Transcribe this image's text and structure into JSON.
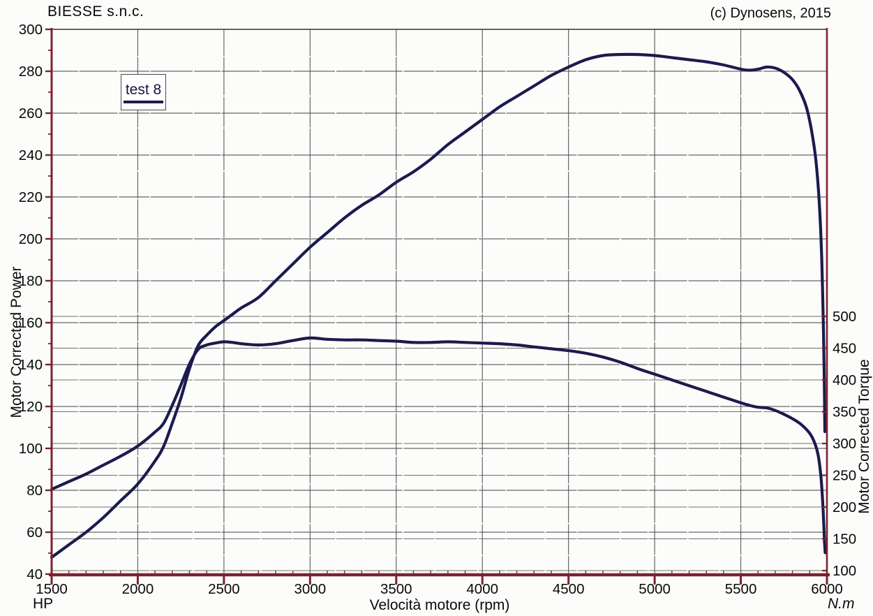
{
  "header": {
    "company_name": "BIESSE s.n.c.",
    "copyright": "(c) Dynosens, 2015"
  },
  "legend": {
    "series_label": "test 8"
  },
  "axes": {
    "x_label": "Velocità motore (rpm)",
    "y_left_label": "Motor Corrected Power",
    "y_right_label": "Motor Corrected Torque",
    "y_left_unit": "HP",
    "y_right_unit": "N.m"
  },
  "chart_data": {
    "type": "line",
    "title": "BIESSE s.n.c.",
    "xlabel": "Velocità motore (rpm)",
    "ylabel_left": "Motor Corrected Power (HP)",
    "ylabel_right": "Motor Corrected Torque (N.m)",
    "legend_entries": [
      "test 8"
    ],
    "legend_position": "top-left",
    "grid": true,
    "x_range": [
      1500,
      6000
    ],
    "x_ticks": [
      1500,
      2000,
      2500,
      3000,
      3500,
      4000,
      4500,
      5000,
      5500,
      6000
    ],
    "x_minor_step": 100,
    "y_left_range": [
      40,
      300
    ],
    "y_left_ticks": [
      300,
      280,
      260,
      240,
      220,
      200,
      180,
      160,
      140,
      120,
      100,
      80,
      60,
      40
    ],
    "y_left_minor_step": 10,
    "y_right_ticks": [
      500,
      450,
      400,
      350,
      300,
      250,
      200,
      150,
      100
    ],
    "series": [
      {
        "name": "test 8 power",
        "axis": "left",
        "unit": "HP",
        "points": [
          [
            1500,
            48
          ],
          [
            1600,
            54
          ],
          [
            1700,
            60
          ],
          [
            1800,
            67
          ],
          [
            1900,
            75
          ],
          [
            2000,
            83
          ],
          [
            2100,
            94
          ],
          [
            2150,
            101
          ],
          [
            2200,
            112
          ],
          [
            2250,
            124
          ],
          [
            2300,
            138
          ],
          [
            2350,
            149
          ],
          [
            2400,
            154
          ],
          [
            2450,
            158
          ],
          [
            2500,
            161
          ],
          [
            2550,
            164
          ],
          [
            2600,
            167
          ],
          [
            2700,
            172
          ],
          [
            2800,
            180
          ],
          [
            2900,
            188
          ],
          [
            3000,
            196
          ],
          [
            3100,
            203
          ],
          [
            3200,
            210
          ],
          [
            3300,
            216
          ],
          [
            3400,
            221
          ],
          [
            3500,
            227
          ],
          [
            3600,
            232
          ],
          [
            3700,
            238
          ],
          [
            3800,
            245
          ],
          [
            3900,
            251
          ],
          [
            4000,
            257
          ],
          [
            4100,
            263
          ],
          [
            4200,
            268
          ],
          [
            4300,
            273
          ],
          [
            4400,
            278
          ],
          [
            4500,
            282
          ],
          [
            4600,
            285.5
          ],
          [
            4700,
            287.5
          ],
          [
            4800,
            288
          ],
          [
            4900,
            288
          ],
          [
            5000,
            287.5
          ],
          [
            5100,
            286.5
          ],
          [
            5200,
            285.5
          ],
          [
            5300,
            284.5
          ],
          [
            5400,
            283
          ],
          [
            5500,
            281
          ],
          [
            5550,
            280.5
          ],
          [
            5600,
            281
          ],
          [
            5650,
            282
          ],
          [
            5700,
            281.5
          ],
          [
            5750,
            279.5
          ],
          [
            5800,
            276
          ],
          [
            5840,
            271
          ],
          [
            5880,
            263
          ],
          [
            5910,
            252
          ],
          [
            5935,
            238
          ],
          [
            5955,
            218
          ],
          [
            5970,
            190
          ],
          [
            5980,
            155
          ],
          [
            5985,
            130
          ],
          [
            5988,
            108
          ]
        ]
      },
      {
        "name": "test 8 torque",
        "axis": "right",
        "unit": "N.m",
        "points": [
          [
            1500,
            228
          ],
          [
            1600,
            240
          ],
          [
            1700,
            252
          ],
          [
            1800,
            266
          ],
          [
            1900,
            280
          ],
          [
            2000,
            296
          ],
          [
            2100,
            318
          ],
          [
            2150,
            332
          ],
          [
            2200,
            360
          ],
          [
            2250,
            392
          ],
          [
            2300,
            425
          ],
          [
            2350,
            448
          ],
          [
            2400,
            455
          ],
          [
            2450,
            458
          ],
          [
            2500,
            460
          ],
          [
            2550,
            459
          ],
          [
            2600,
            457
          ],
          [
            2700,
            455
          ],
          [
            2800,
            457
          ],
          [
            2900,
            462
          ],
          [
            3000,
            466
          ],
          [
            3100,
            464
          ],
          [
            3200,
            463
          ],
          [
            3300,
            463
          ],
          [
            3400,
            462
          ],
          [
            3500,
            461
          ],
          [
            3600,
            459
          ],
          [
            3700,
            459
          ],
          [
            3800,
            460
          ],
          [
            3900,
            459
          ],
          [
            4000,
            458
          ],
          [
            4100,
            457
          ],
          [
            4200,
            455
          ],
          [
            4300,
            452
          ],
          [
            4400,
            449
          ],
          [
            4500,
            446
          ],
          [
            4600,
            442
          ],
          [
            4700,
            436
          ],
          [
            4800,
            428
          ],
          [
            4900,
            418
          ],
          [
            5000,
            409
          ],
          [
            5100,
            400
          ],
          [
            5200,
            391
          ],
          [
            5300,
            382
          ],
          [
            5400,
            373
          ],
          [
            5500,
            364
          ],
          [
            5550,
            360
          ],
          [
            5600,
            357
          ],
          [
            5650,
            356
          ],
          [
            5700,
            352
          ],
          [
            5750,
            346
          ],
          [
            5800,
            339
          ],
          [
            5850,
            330
          ],
          [
            5900,
            316
          ],
          [
            5930,
            300
          ],
          [
            5950,
            280
          ],
          [
            5965,
            248
          ],
          [
            5975,
            210
          ],
          [
            5982,
            170
          ],
          [
            5986,
            145
          ],
          [
            5990,
            128
          ]
        ]
      }
    ],
    "colors": {
      "curve": "#1b1b4e",
      "axis": "#7b2130",
      "grid": "#4d4d4d",
      "frame_top": "#333333",
      "text": "#0a0a0a"
    }
  }
}
